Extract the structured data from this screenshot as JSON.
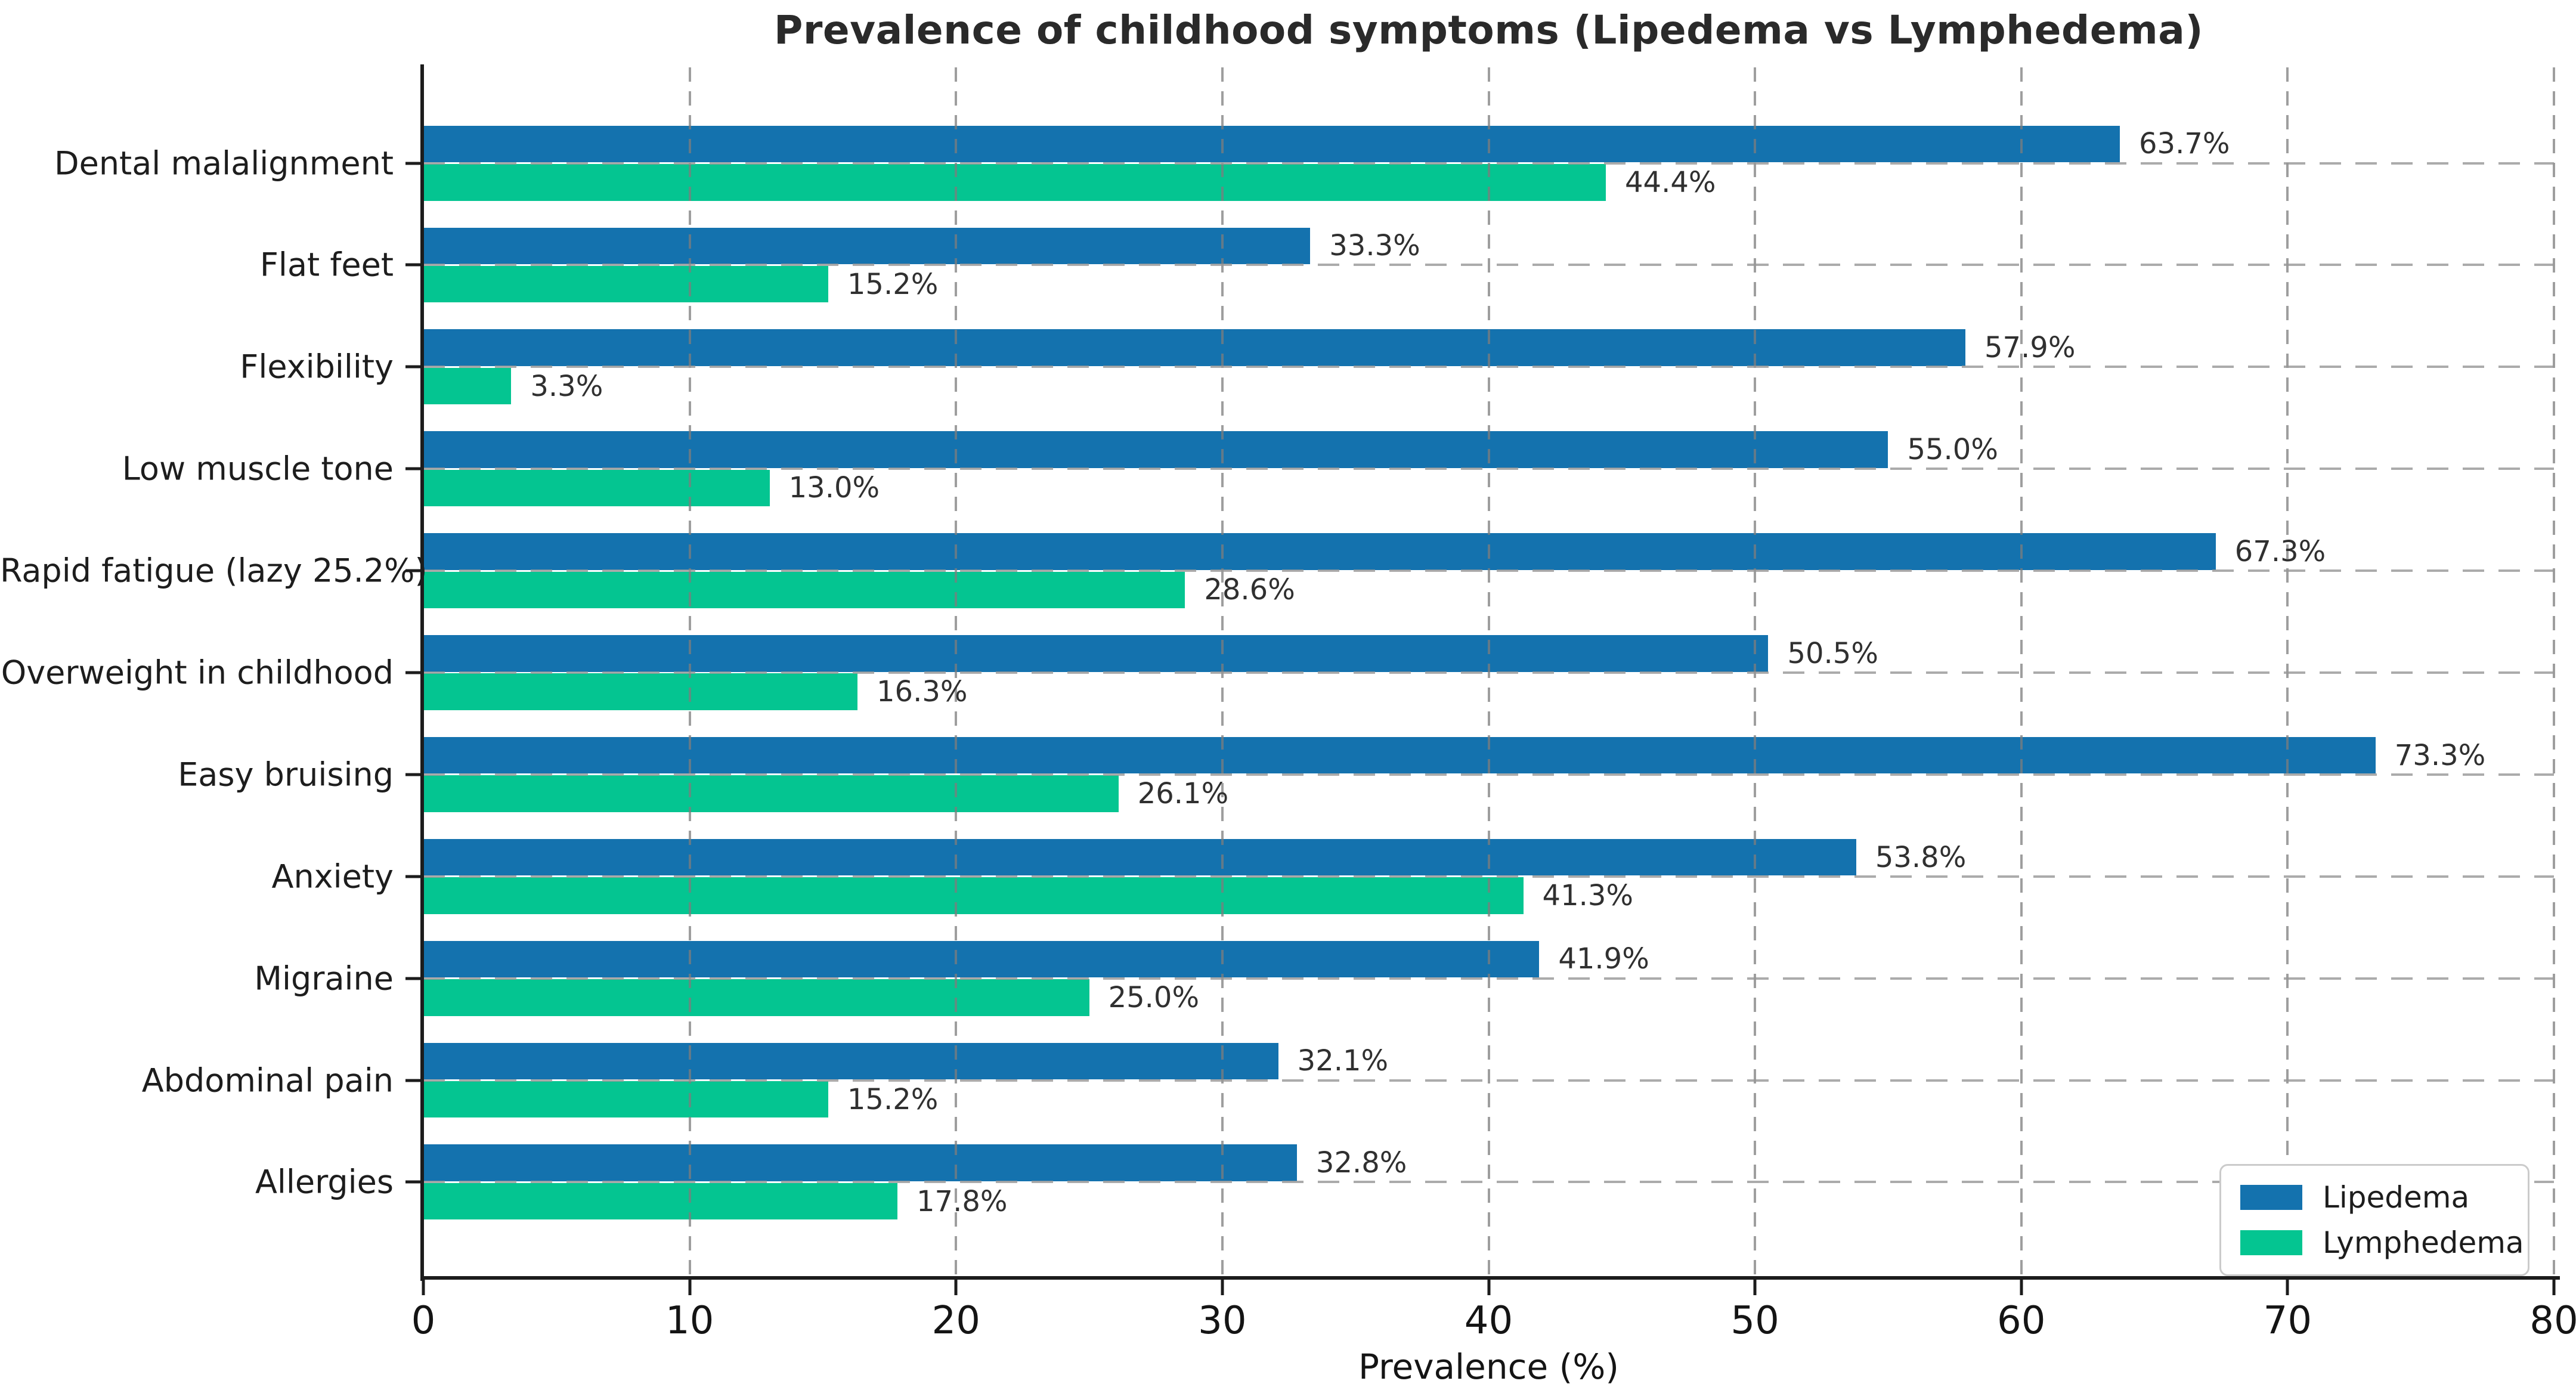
{
  "chart_data": {
    "type": "bar",
    "orientation": "horizontal",
    "title": "Prevalence of childhood symptoms (Lipedema vs Lymphedema)",
    "xlabel": "Prevalence (%)",
    "ylabel": "",
    "xlim": [
      0,
      80
    ],
    "xticks": [
      0,
      10,
      20,
      30,
      40,
      50,
      60,
      70,
      80
    ],
    "grid": true,
    "legend_position": "lower right",
    "categories": [
      "Dental malalignment",
      "Flat feet",
      "Flexibility",
      "Low muscle tone",
      "Rapid fatigue (lazy 25.2%)",
      "Overweight in childhood",
      "Easy bruising",
      "Anxiety",
      "Migraine",
      "Abdominal pain",
      "Allergies"
    ],
    "series": [
      {
        "name": "Lipedema",
        "color": "#1472ae",
        "values": [
          63.7,
          33.3,
          57.9,
          55.0,
          67.3,
          50.5,
          73.3,
          53.8,
          41.9,
          32.1,
          32.8
        ],
        "labels": [
          "63.7%",
          "33.3%",
          "57.9%",
          "55.0%",
          "67.3%",
          "50.5%",
          "73.3%",
          "53.8%",
          "41.9%",
          "32.1%",
          "32.8%"
        ]
      },
      {
        "name": "Lymphedema",
        "color": "#04c591",
        "values": [
          44.4,
          15.2,
          3.3,
          13.0,
          28.6,
          16.3,
          26.1,
          41.3,
          25.0,
          15.2,
          17.8
        ],
        "labels": [
          "44.4%",
          "15.2%",
          "3.3%",
          "13.0%",
          "28.6%",
          "16.3%",
          "26.1%",
          "41.3%",
          "25.0%",
          "15.2%",
          "17.8%"
        ]
      }
    ]
  },
  "style": {
    "background": "#ffffff",
    "spine_color": "#1c1c1c",
    "grid_color": "#8c8c8c",
    "text_color": "#1a1a1a"
  }
}
